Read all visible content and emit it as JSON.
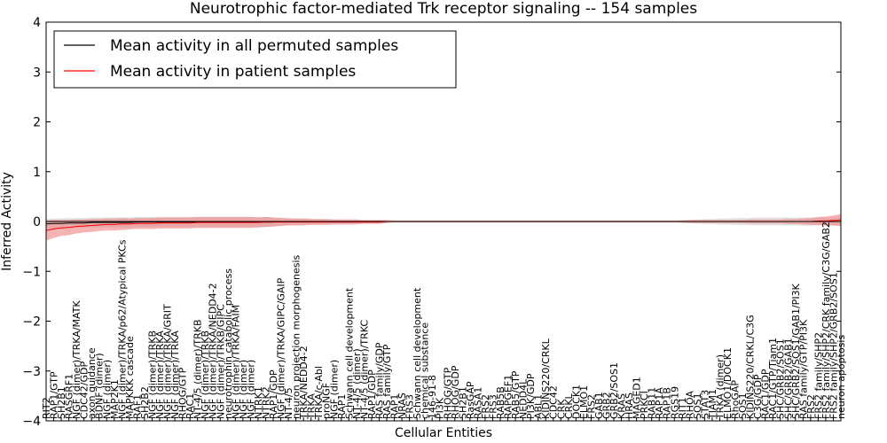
{
  "chart_data": {
    "type": "line",
    "title": "Neurotrophic factor-mediated Trk receptor signaling -- 154 samples",
    "xlabel": "Cellular Entities",
    "ylabel": "Inferred Activity",
    "ylim": [
      -4,
      4
    ],
    "yticks": [
      -4,
      -3,
      -2,
      -1,
      0,
      1,
      2,
      3,
      4
    ],
    "grid": false,
    "legend_position": "upper-left",
    "legend": [
      {
        "label": "Mean activity in all permuted samples",
        "color": "#000000"
      },
      {
        "label": "Mean activity in patient samples",
        "color": "#ff0000"
      }
    ],
    "colors": {
      "permuted": "#000000",
      "patient": "#ff0000",
      "permuted_band": "#c8c8c8",
      "patient_band": "#f08080"
    },
    "categories": [
      "RIT2",
      "RAP1/GTP",
      "SH2B1",
      "RASGRF1",
      "NGF (dimer)/TRKA/MATK",
      "CDC42/GDP",
      "axon guidance",
      "BDNF (dimer)",
      "NGF (dimer)",
      "MAP2K1",
      "NGF (dimer)/TRKA/p62/Atypical PKCs",
      "MAPKKK cascade",
      "RAF1",
      "SH2B2",
      "NGF (dimer)/TRKB",
      "NGF (dimer)/TRKA",
      "NGF (dimer)/TRKA/GRIT",
      "NGF (dimer)/TRKA",
      "RHOG/GTP",
      "RAC1",
      "NT-4/5 (dimer)/TRKB",
      "NGF (dimer)/TRKB",
      "NGF (dimer)/TRKA/NEDD4-2",
      "NGF (dimer)/TRKB/GIPC",
      "neurotrophin catabolic process",
      "NGF (dimer)/TRKA/FAIM",
      "NGF (dimer)",
      "NGF (dimer)",
      "NTRK1",
      "NTRK2",
      "RAP1/GDP",
      "NGF (dimer)/TRKA/GIPC/GAIP",
      "NT-4/5",
      "neuron projection morphogenesis",
      "TRKA/NEDD4-2",
      "TRKA",
      "TRKA/c-Abl",
      "proNGF",
      "NGF (dimer)",
      "RAP1",
      "Schwann cell development",
      "NT-4/5 (dimer)",
      "NT-4/5 (dimer)/TRKC",
      "RAP1/GDP",
      "RAS family/GDP",
      "RAS family/GTP",
      "RAP1",
      "NRAS",
      "FRS3",
      "Schwann cell development",
      "chemical substance",
      "146-91-8",
      "PI3K",
      "RHOG/GTP",
      "RHOG/GDP",
      "SH2B1",
      "RasGAP",
      "RASA1",
      "FRS2",
      "FRS3",
      "RAB5B",
      "RAPGEF1",
      "RAB5/GTP",
      "NEDD4L",
      "PI3K/GDP",
      "ABL1",
      "KIDINS220/CRKL",
      "CDC42",
      "CRK",
      "CRKL",
      "DOCK1",
      "ELMO1",
      "FRS2",
      "GAB1",
      "GRB2",
      "GRB2/SOS1",
      "KRAS",
      "HRAS",
      "MAGED1",
      "PRKCI",
      "RAB11",
      "RAP1A",
      "RAP1B",
      "RGS19",
      "RIT1",
      "RHOA",
      "SOS1",
      "STAT3",
      "TIAM1",
      "TRKA (dimer)",
      "ELMO1/DOCK1",
      "RhoGAP",
      "SOS1",
      "KIDINS220/CRKL/C3G",
      "C3G/GDP",
      "RAC1/GDP",
      "RAC1/GTP/Tiam1",
      "SHC/GRB2/SOS1",
      "SHC/GRB2/GAB1",
      "SHC/GRB2/SOS1/GAB1/PI3K",
      "RAS family/GTP/PI3K",
      "FRS2",
      "FRS2 family/SHP2",
      "FRS2 family/SHP2/CRK family/C3G/GAB2",
      "FRS2 family/SHP2/GRB2/SOS1",
      "neuron apoptosis"
    ],
    "patient_mean": [
      -0.18,
      -0.15,
      -0.13,
      -0.12,
      -0.1,
      -0.09,
      -0.08,
      -0.07,
      -0.06,
      -0.06,
      -0.05,
      -0.05,
      -0.04,
      -0.04,
      -0.04,
      -0.03,
      -0.03,
      -0.03,
      -0.03,
      -0.03,
      -0.02,
      -0.02,
      -0.02,
      -0.02,
      -0.02,
      -0.02,
      -0.02,
      -0.02,
      -0.02,
      -0.01,
      -0.01,
      -0.01,
      -0.01,
      -0.01,
      -0.01,
      -0.01,
      -0.01,
      -0.01,
      -0.01,
      -0.01,
      -0.01,
      -0.01,
      -0.01,
      -0.01,
      -0.01,
      0,
      0,
      0,
      0,
      0,
      0,
      0,
      0,
      0,
      0,
      0,
      0,
      0,
      0,
      0,
      0,
      0,
      0,
      0,
      0,
      0,
      0,
      0,
      0,
      0,
      0,
      0,
      0,
      0,
      0,
      0,
      0,
      0,
      0,
      0,
      0,
      0,
      0,
      0,
      0,
      0,
      0,
      0,
      0,
      0,
      0,
      0,
      0,
      0,
      0,
      0,
      0,
      0,
      0,
      0,
      0,
      0,
      0.01,
      0.01,
      0.02,
      0.03,
      0.05,
      0.1
    ],
    "patient_band": [
      0.2,
      0.18,
      0.16,
      0.15,
      0.14,
      0.13,
      0.13,
      0.12,
      0.12,
      0.12,
      0.12,
      0.11,
      0.11,
      0.11,
      0.11,
      0.11,
      0.11,
      0.11,
      0.11,
      0.11,
      0.11,
      0.11,
      0.11,
      0.11,
      0.11,
      0.11,
      0.11,
      0.11,
      0.1,
      0.1,
      0.09,
      0.08,
      0.07,
      0.07,
      0.07,
      0.06,
      0.06,
      0.06,
      0.05,
      0.05,
      0.05,
      0.05,
      0.04,
      0.04,
      0.04,
      0.03,
      0.02,
      0.02,
      0.02,
      0.02,
      0.02,
      0.02,
      0.02,
      0.02,
      0.02,
      0.02,
      0.02,
      0.02,
      0.02,
      0.02,
      0.02,
      0.02,
      0.02,
      0.02,
      0.02,
      0.02,
      0.02,
      0.02,
      0.02,
      0.02,
      0.02,
      0.02,
      0.02,
      0.02,
      0.02,
      0.02,
      0.02,
      0.02,
      0.02,
      0.02,
      0.02,
      0.02,
      0.02,
      0.02,
      0.02,
      0.03,
      0.03,
      0.03,
      0.03,
      0.03,
      0.03,
      0.03,
      0.03,
      0.04,
      0.04,
      0.04,
      0.04,
      0.04,
      0.05,
      0.05,
      0.06,
      0.07,
      0.08,
      0.09,
      0.1,
      0.12,
      0.13
    ],
    "permuted_mean": [
      -0.05,
      -0.04,
      -0.04,
      -0.03,
      -0.03,
      -0.03,
      -0.02,
      -0.02,
      -0.02,
      -0.02,
      -0.02,
      -0.02,
      -0.01,
      -0.01,
      -0.01,
      -0.01,
      -0.01,
      -0.01,
      -0.01,
      -0.01,
      -0.01,
      -0.01,
      -0.01,
      -0.01,
      -0.01,
      -0.01,
      -0.01,
      -0.01,
      -0.01,
      -0.01,
      -0.01,
      0,
      0,
      0,
      0,
      0,
      0,
      0,
      0,
      0,
      0,
      0,
      0,
      0,
      0,
      0,
      0,
      0,
      0,
      0,
      0,
      0,
      0,
      0,
      0,
      0,
      0,
      0,
      0,
      0,
      0,
      0,
      0,
      0,
      0,
      0,
      0,
      0,
      0,
      0,
      0,
      0,
      0,
      0,
      0,
      0,
      0,
      0,
      0,
      0,
      0,
      0,
      0,
      0,
      0,
      0,
      0,
      0,
      0,
      0,
      0,
      0,
      0,
      0,
      0,
      0,
      0,
      0,
      0,
      0,
      0,
      0,
      0,
      0,
      0,
      0,
      0,
      0
    ],
    "permuted_band": [
      0.1,
      0.1,
      0.1,
      0.1,
      0.1,
      0.1,
      0.1,
      0.1,
      0.1,
      0.1,
      0.1,
      0.1,
      0.1,
      0.1,
      0.1,
      0.1,
      0.1,
      0.1,
      0.1,
      0.1,
      0.1,
      0.1,
      0.1,
      0.1,
      0.1,
      0.1,
      0.1,
      0.1,
      0.1,
      0.1,
      0.09,
      0.08,
      0.07,
      0.06,
      0.06,
      0.06,
      0.05,
      0.05,
      0.05,
      0.04,
      0.04,
      0.04,
      0.03,
      0.03,
      0.03,
      0.02,
      0.02,
      0.02,
      0.02,
      0.02,
      0.02,
      0.02,
      0.02,
      0.02,
      0.02,
      0.02,
      0.02,
      0.02,
      0.02,
      0.02,
      0.02,
      0.02,
      0.02,
      0.02,
      0.02,
      0.02,
      0.02,
      0.02,
      0.02,
      0.02,
      0.02,
      0.02,
      0.02,
      0.02,
      0.02,
      0.02,
      0.02,
      0.02,
      0.02,
      0.02,
      0.02,
      0.02,
      0.02,
      0.02,
      0.03,
      0.03,
      0.04,
      0.05,
      0.05,
      0.06,
      0.06,
      0.07,
      0.07,
      0.07,
      0.08,
      0.08,
      0.08,
      0.08,
      0.08,
      0.08,
      0.08,
      0.08,
      0.08,
      0.08,
      0.08,
      0.08,
      0.08
    ]
  }
}
